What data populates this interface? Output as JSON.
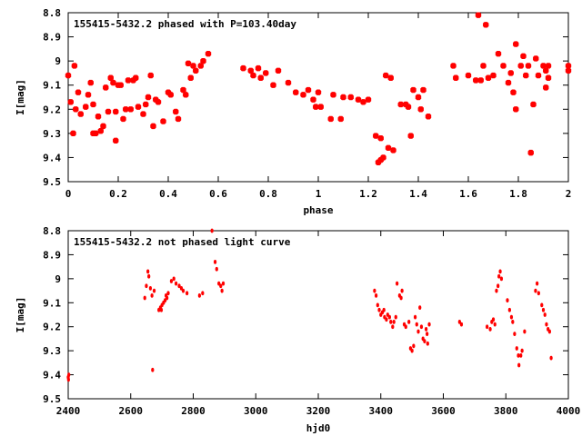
{
  "chart_data": [
    {
      "type": "scatter",
      "title": "155415-5432.2 phased with P=103.40day",
      "xlabel": "phase",
      "ylabel": "I[mag]",
      "xlim": [
        0,
        2
      ],
      "ylim": [
        8.8,
        9.5
      ],
      "y_inverted": true,
      "grid": false,
      "xticks": [
        "0",
        "0.2",
        "0.4",
        "0.6",
        "0.8",
        "1",
        "1.2",
        "1.4",
        "1.6",
        "1.8",
        "2"
      ],
      "yticks": [
        "8.8",
        "8.9",
        "9",
        "9.1",
        "9.2",
        "9.3",
        "9.4",
        "9.5"
      ],
      "marker_color": "#ff0000",
      "points": [
        [
          0.0,
          9.06
        ],
        [
          0.01,
          9.17
        ],
        [
          0.02,
          9.3
        ],
        [
          0.025,
          9.02
        ],
        [
          0.03,
          9.2
        ],
        [
          0.04,
          9.13
        ],
        [
          0.05,
          9.22
        ],
        [
          0.07,
          9.19
        ],
        [
          0.08,
          9.14
        ],
        [
          0.09,
          9.09
        ],
        [
          0.1,
          9.3
        ],
        [
          0.1,
          9.18
        ],
        [
          0.11,
          9.3
        ],
        [
          0.12,
          9.23
        ],
        [
          0.13,
          9.29
        ],
        [
          0.14,
          9.27
        ],
        [
          0.15,
          9.11
        ],
        [
          0.16,
          9.21
        ],
        [
          0.17,
          9.07
        ],
        [
          0.18,
          9.09
        ],
        [
          0.19,
          9.33
        ],
        [
          0.19,
          9.21
        ],
        [
          0.2,
          9.1
        ],
        [
          0.21,
          9.1
        ],
        [
          0.22,
          9.24
        ],
        [
          0.23,
          9.2
        ],
        [
          0.24,
          9.08
        ],
        [
          0.25,
          9.2
        ],
        [
          0.26,
          9.08
        ],
        [
          0.27,
          9.07
        ],
        [
          0.28,
          9.19
        ],
        [
          0.3,
          9.22
        ],
        [
          0.31,
          9.18
        ],
        [
          0.32,
          9.15
        ],
        [
          0.33,
          9.06
        ],
        [
          0.34,
          9.27
        ],
        [
          0.35,
          9.16
        ],
        [
          0.36,
          9.17
        ],
        [
          0.38,
          9.25
        ],
        [
          0.4,
          9.13
        ],
        [
          0.41,
          9.14
        ],
        [
          0.43,
          9.21
        ],
        [
          0.44,
          9.24
        ],
        [
          0.46,
          9.12
        ],
        [
          0.47,
          9.14
        ],
        [
          0.48,
          9.01
        ],
        [
          0.49,
          9.07
        ],
        [
          0.5,
          9.02
        ],
        [
          0.51,
          9.04
        ],
        [
          0.53,
          9.02
        ],
        [
          0.54,
          9.0
        ],
        [
          0.56,
          8.97
        ],
        [
          0.7,
          9.03
        ],
        [
          0.73,
          9.04
        ],
        [
          0.74,
          9.06
        ],
        [
          0.76,
          9.03
        ],
        [
          0.77,
          9.07
        ],
        [
          0.79,
          9.05
        ],
        [
          0.82,
          9.1
        ],
        [
          0.84,
          9.04
        ],
        [
          0.88,
          9.09
        ],
        [
          0.91,
          9.13
        ],
        [
          0.94,
          9.14
        ],
        [
          0.96,
          9.12
        ],
        [
          0.98,
          9.16
        ],
        [
          0.99,
          9.19
        ],
        [
          1.0,
          9.13
        ],
        [
          1.01,
          9.19
        ],
        [
          1.05,
          9.24
        ],
        [
          1.06,
          9.14
        ],
        [
          1.09,
          9.24
        ],
        [
          1.1,
          9.15
        ],
        [
          1.13,
          9.15
        ],
        [
          1.16,
          9.16
        ],
        [
          1.18,
          9.17
        ],
        [
          1.2,
          9.16
        ],
        [
          1.23,
          9.31
        ],
        [
          1.24,
          9.42
        ],
        [
          1.25,
          9.41
        ],
        [
          1.25,
          9.32
        ],
        [
          1.26,
          9.4
        ],
        [
          1.27,
          9.06
        ],
        [
          1.28,
          9.36
        ],
        [
          1.29,
          9.07
        ],
        [
          1.3,
          9.37
        ],
        [
          1.33,
          9.18
        ],
        [
          1.35,
          9.18
        ],
        [
          1.36,
          9.19
        ],
        [
          1.37,
          9.31
        ],
        [
          1.38,
          9.12
        ],
        [
          1.4,
          9.15
        ],
        [
          1.41,
          9.2
        ],
        [
          1.42,
          9.12
        ],
        [
          1.44,
          9.23
        ],
        [
          1.54,
          9.02
        ],
        [
          1.55,
          9.07
        ],
        [
          1.6,
          9.06
        ],
        [
          1.63,
          9.08
        ],
        [
          1.64,
          8.81
        ],
        [
          1.65,
          9.08
        ],
        [
          1.66,
          9.02
        ],
        [
          1.67,
          8.85
        ],
        [
          1.68,
          9.07
        ],
        [
          1.7,
          9.06
        ],
        [
          1.72,
          8.97
        ],
        [
          1.74,
          9.02
        ],
        [
          1.76,
          9.09
        ],
        [
          1.77,
          9.05
        ],
        [
          1.78,
          9.13
        ],
        [
          1.79,
          9.2
        ],
        [
          1.79,
          8.93
        ],
        [
          1.81,
          9.02
        ],
        [
          1.82,
          8.98
        ],
        [
          1.83,
          9.06
        ],
        [
          1.84,
          9.02
        ],
        [
          1.85,
          9.38
        ],
        [
          1.86,
          9.18
        ],
        [
          1.87,
          8.99
        ],
        [
          1.88,
          9.06
        ],
        [
          1.9,
          9.02
        ],
        [
          1.91,
          9.04
        ],
        [
          1.91,
          9.11
        ],
        [
          1.92,
          9.07
        ],
        [
          1.92,
          9.02
        ],
        [
          2.0,
          9.02
        ],
        [
          2.0,
          9.04
        ]
      ]
    },
    {
      "type": "scatter",
      "title": "155415-5432.2 not phased light curve",
      "xlabel": "hjd0",
      "ylabel": "I[mag]",
      "xlim": [
        2400,
        4000
      ],
      "ylim": [
        8.8,
        9.5
      ],
      "y_inverted": true,
      "grid": false,
      "xticks": [
        "2400",
        "2600",
        "2800",
        "3000",
        "3200",
        "3400",
        "3600",
        "3800",
        "4000"
      ],
      "yticks": [
        "8.8",
        "8.9",
        "9",
        "9.1",
        "9.2",
        "9.3",
        "9.4",
        "9.5"
      ],
      "marker_color": "#ff0000",
      "points": [
        [
          2400,
          9.41
        ],
        [
          2401,
          9.42
        ],
        [
          2402,
          9.4
        ],
        [
          2645,
          9.08
        ],
        [
          2650,
          9.03
        ],
        [
          2655,
          8.97
        ],
        [
          2658,
          8.99
        ],
        [
          2663,
          9.04
        ],
        [
          2668,
          9.07
        ],
        [
          2670,
          9.38
        ],
        [
          2675,
          9.05
        ],
        [
          2690,
          9.13
        ],
        [
          2695,
          9.12
        ],
        [
          2698,
          9.13
        ],
        [
          2700,
          9.11
        ],
        [
          2705,
          9.1
        ],
        [
          2710,
          9.09
        ],
        [
          2713,
          9.07
        ],
        [
          2716,
          9.08
        ],
        [
          2720,
          9.06
        ],
        [
          2730,
          9.01
        ],
        [
          2738,
          9.0
        ],
        [
          2745,
          9.02
        ],
        [
          2755,
          9.03
        ],
        [
          2762,
          9.04
        ],
        [
          2768,
          9.05
        ],
        [
          2780,
          9.06
        ],
        [
          2820,
          9.07
        ],
        [
          2830,
          9.06
        ],
        [
          2860,
          8.8
        ],
        [
          2870,
          8.93
        ],
        [
          2875,
          8.96
        ],
        [
          2882,
          9.02
        ],
        [
          2888,
          9.03
        ],
        [
          2892,
          9.05
        ],
        [
          2896,
          9.02
        ],
        [
          3380,
          9.05
        ],
        [
          3385,
          9.07
        ],
        [
          3390,
          9.11
        ],
        [
          3395,
          9.13
        ],
        [
          3400,
          9.15
        ],
        [
          3405,
          9.14
        ],
        [
          3410,
          9.13
        ],
        [
          3412,
          9.16
        ],
        [
          3418,
          9.17
        ],
        [
          3422,
          9.15
        ],
        [
          3428,
          9.16
        ],
        [
          3432,
          9.18
        ],
        [
          3438,
          9.2
        ],
        [
          3442,
          9.18
        ],
        [
          3448,
          9.16
        ],
        [
          3452,
          9.02
        ],
        [
          3460,
          9.07
        ],
        [
          3465,
          9.08
        ],
        [
          3468,
          9.05
        ],
        [
          3475,
          9.19
        ],
        [
          3480,
          9.2
        ],
        [
          3490,
          9.18
        ],
        [
          3495,
          9.29
        ],
        [
          3500,
          9.3
        ],
        [
          3505,
          9.28
        ],
        [
          3510,
          9.16
        ],
        [
          3515,
          9.19
        ],
        [
          3520,
          9.22
        ],
        [
          3525,
          9.12
        ],
        [
          3530,
          9.2
        ],
        [
          3535,
          9.25
        ],
        [
          3540,
          9.26
        ],
        [
          3545,
          9.21
        ],
        [
          3548,
          9.23
        ],
        [
          3550,
          9.27
        ],
        [
          3555,
          9.19
        ],
        [
          3652,
          9.18
        ],
        [
          3658,
          9.19
        ],
        [
          3740,
          9.2
        ],
        [
          3750,
          9.21
        ],
        [
          3755,
          9.18
        ],
        [
          3760,
          9.17
        ],
        [
          3765,
          9.19
        ],
        [
          3770,
          9.05
        ],
        [
          3775,
          9.03
        ],
        [
          3778,
          8.99
        ],
        [
          3782,
          8.97
        ],
        [
          3786,
          9.0
        ],
        [
          3805,
          9.09
        ],
        [
          3812,
          9.13
        ],
        [
          3818,
          9.16
        ],
        [
          3822,
          9.18
        ],
        [
          3828,
          9.23
        ],
        [
          3835,
          9.29
        ],
        [
          3840,
          9.32
        ],
        [
          3842,
          9.36
        ],
        [
          3848,
          9.32
        ],
        [
          3852,
          9.3
        ],
        [
          3860,
          9.22
        ],
        [
          3895,
          9.05
        ],
        [
          3900,
          9.02
        ],
        [
          3905,
          9.06
        ],
        [
          3915,
          9.11
        ],
        [
          3920,
          9.13
        ],
        [
          3925,
          9.15
        ],
        [
          3930,
          9.19
        ],
        [
          3935,
          9.21
        ],
        [
          3940,
          9.22
        ],
        [
          3945,
          9.33
        ]
      ]
    }
  ]
}
